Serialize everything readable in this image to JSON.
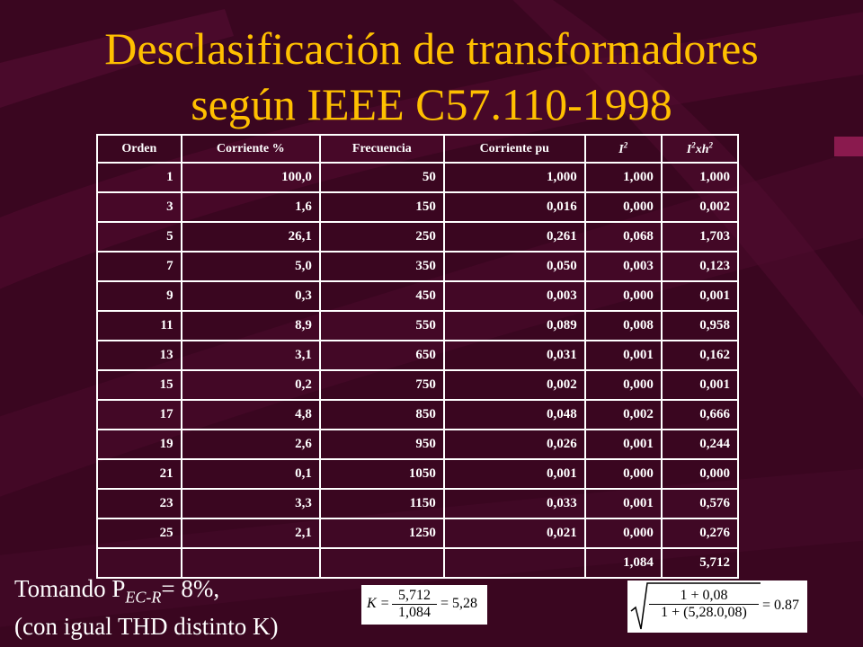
{
  "title": {
    "line1": "Desclasificación de transformadores",
    "line2": "según IEEE C57.110-1998"
  },
  "table": {
    "headers": [
      "Orden",
      "Corriente %",
      "Frecuencia",
      "Corriente pu",
      "I2",
      "I2xh2"
    ],
    "rows": [
      [
        "1",
        "100,0",
        "50",
        "1,000",
        "1,000",
        "1,000"
      ],
      [
        "3",
        "1,6",
        "150",
        "0,016",
        "0,000",
        "0,002"
      ],
      [
        "5",
        "26,1",
        "250",
        "0,261",
        "0,068",
        "1,703"
      ],
      [
        "7",
        "5,0",
        "350",
        "0,050",
        "0,003",
        "0,123"
      ],
      [
        "9",
        "0,3",
        "450",
        "0,003",
        "0,000",
        "0,001"
      ],
      [
        "11",
        "8,9",
        "550",
        "0,089",
        "0,008",
        "0,958"
      ],
      [
        "13",
        "3,1",
        "650",
        "0,031",
        "0,001",
        "0,162"
      ],
      [
        "15",
        "0,2",
        "750",
        "0,002",
        "0,000",
        "0,001"
      ],
      [
        "17",
        "4,8",
        "850",
        "0,048",
        "0,002",
        "0,666"
      ],
      [
        "19",
        "2,6",
        "950",
        "0,026",
        "0,001",
        "0,244"
      ],
      [
        "21",
        "0,1",
        "1050",
        "0,001",
        "0,000",
        "0,000"
      ],
      [
        "23",
        "3,3",
        "1150",
        "0,033",
        "0,001",
        "0,576"
      ],
      [
        "25",
        "2,1",
        "1250",
        "0,021",
        "0,000",
        "0,276"
      ]
    ],
    "totals": [
      "",
      "",
      "",
      "",
      "1,084",
      "5,712"
    ]
  },
  "notes": {
    "line1_prefix": "Tomando P",
    "line1_sub": "EC-R",
    "line1_suffix": "= 8%,",
    "line2": "(con igual THD distinto K)"
  },
  "formula_k": {
    "lhs": "K =",
    "num": "5,712",
    "den": "1,084",
    "rhs": "= 5,28"
  },
  "formula_derate": {
    "num": "1 + 0,08",
    "den": "1 + (5,28.0,08)",
    "rhs": "= 0.87"
  },
  "colors": {
    "background": "#3a0620",
    "title": "#ffc000",
    "text": "#ffffff"
  }
}
